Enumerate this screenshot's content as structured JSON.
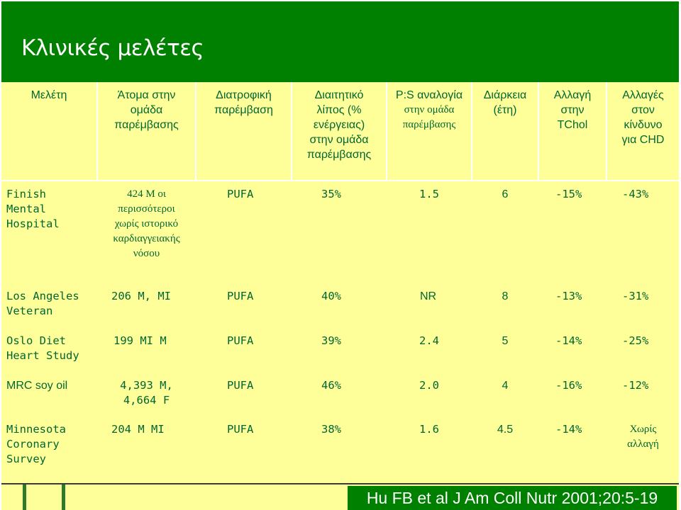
{
  "slide": {
    "title": "Κλινικές μελέτες",
    "colors": {
      "header_green": "#008000",
      "table_yellow": "#ffff99",
      "text_green": "#006633"
    }
  },
  "table": {
    "headers": [
      {
        "lines": [
          "Μελέτη"
        ]
      },
      {
        "lines": [
          "Άτομα στην",
          "ομάδα",
          "παρέμβασης"
        ]
      },
      {
        "lines": [
          "Διατροφική",
          "παρέμβαση"
        ]
      },
      {
        "lines": [
          "Διαιτητικό",
          "λίπος (%",
          "ενέργειας)",
          "στην ομάδα",
          "παρέμβασης"
        ]
      },
      {
        "lines": [
          "P:S αναλογία",
          "στην ομάδα",
          "παρέμβασης"
        ]
      },
      {
        "lines": [
          "Διάρκεια",
          "(έτη)"
        ]
      },
      {
        "lines": [
          "Αλλαγή",
          "στην",
          "TChol"
        ]
      },
      {
        "lines": [
          "Αλλαγές",
          "στον",
          "κίνδυνο",
          "για CHD"
        ]
      }
    ],
    "rows": [
      {
        "study": [
          "Finish",
          "Mental",
          "Hospital"
        ],
        "subjects": [
          "424 M οι",
          "περισσότεροι",
          "χωρίς ιστορικό",
          "καρδιαγγειακής",
          "νόσου"
        ],
        "intervention": "PUFA",
        "fat": "35%",
        "ps_ratio": "1.5",
        "duration": "6",
        "tchol": "-15%",
        "chd": [
          "-43%"
        ]
      },
      {
        "study": [
          "Los Angeles",
          "Veteran"
        ],
        "subjects": [
          "206 M, MI"
        ],
        "intervention": "PUFA",
        "fat": "40%",
        "ps_ratio": "NR",
        "duration": "8",
        "tchol": "-13%",
        "chd": [
          "-31%"
        ]
      },
      {
        "study": [
          "Oslo Diet",
          "Heart Study"
        ],
        "subjects": [
          "199 MI M"
        ],
        "intervention": "PUFA",
        "fat": "39%",
        "ps_ratio": "2.4",
        "duration": "5",
        "tchol": "-14%",
        "chd": [
          "-25%"
        ]
      },
      {
        "study": [
          "MRC soy oil"
        ],
        "subjects": [
          "4,393 M,",
          "4,664 F"
        ],
        "intervention": "PUFA",
        "fat": "46%",
        "ps_ratio": "2.0",
        "duration": "4",
        "tchol": "-16%",
        "chd": [
          "-12%"
        ]
      },
      {
        "study": [
          "Minnesota",
          "Coronary",
          "Survey"
        ],
        "subjects": [
          "204 M MI"
        ],
        "intervention": "PUFA",
        "fat": "38%",
        "ps_ratio": "1.6",
        "duration": "4.5",
        "tchol": "-14%",
        "chd": [
          "Χωρίς",
          "αλλαγή"
        ]
      }
    ]
  },
  "footer": {
    "citation": "Hu FB et al J Am Coll Nutr 2001;20:5-19"
  }
}
